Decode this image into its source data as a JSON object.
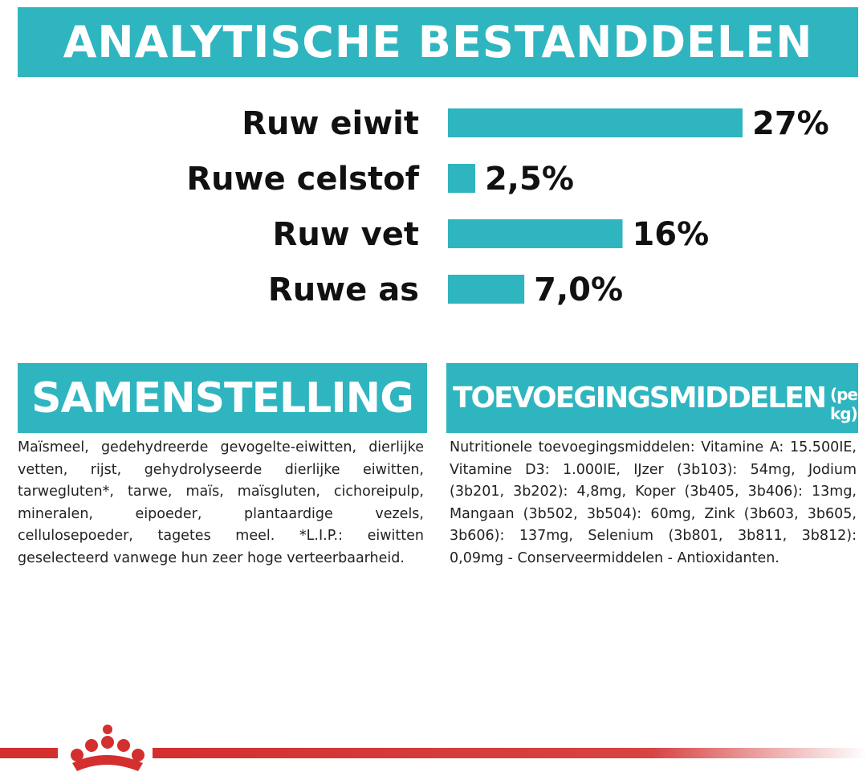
{
  "header": {
    "title": "ANALYTISCHE BESTANDDELEN"
  },
  "chart_data": {
    "type": "bar",
    "orientation": "horizontal",
    "categories": [
      "Ruw eiwit",
      "Ruwe celstof",
      "Ruw vet",
      "Ruwe as"
    ],
    "values": [
      27,
      2.5,
      16,
      7.0
    ],
    "value_labels": [
      "27%",
      "2,5%",
      "16%",
      "7,0%"
    ],
    "bar_color": "#2fb5bf",
    "xlim": [
      0,
      27
    ]
  },
  "composition": {
    "title": "SAMENSTELLING",
    "text": "Maïsmeel, gedehydreerde gevogelte-eiwitten, dierlijke vetten, rijst, gehydrolyseerde dierlijke eiwitten, tarwegluten*, tarwe, maïs, maïsgluten, cichoreipulp, mineralen, eipoeder, plantaardige vezels, cellulosepoeder, tagetes meel. *L.I.P.: eiwitten geselecteerd vanwege hun zeer hoge verteerbaarheid."
  },
  "additives": {
    "title": "TOEVOEGINGSMIDDELEN",
    "title_suffix": "(per kg)",
    "text": "Nutritionele toevoegingsmiddelen: Vitamine A: 15.500IE, Vitamine D3: 1.000IE, IJzer (3b103): 54mg, Jodium (3b201, 3b202): 4,8mg, Koper (3b405, 3b406): 13mg, Mangaan (3b502, 3b504): 60mg, Zink (3b603, 3b605, 3b606): 137mg, Selenium (3b801, 3b811, 3b812): 0,09mg - Conserveermiddelen - Antioxidanten."
  },
  "colors": {
    "accent": "#2fb5bf",
    "brand_red": "#d32f2f"
  },
  "icons": {
    "logo": "royal-crown-icon"
  }
}
